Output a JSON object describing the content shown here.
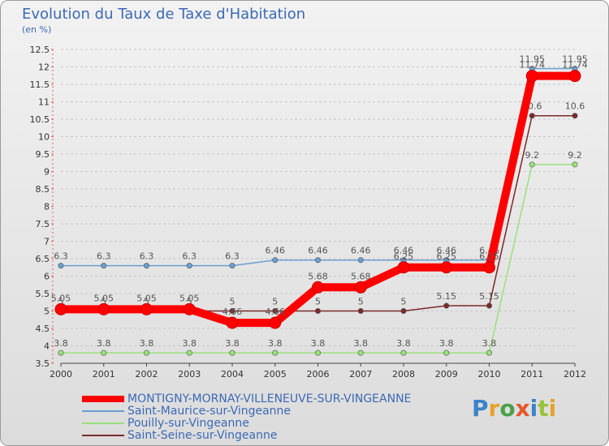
{
  "title": "Evolution du Taux de Taxe d'Habitation",
  "subtitle": "(en %)",
  "logo": {
    "letters": [
      "P",
      "r",
      "o",
      "x",
      "i",
      "t",
      "i"
    ],
    "colors": [
      "#3b83c9",
      "#e5a32b",
      "#4aa04a",
      "#e5572b",
      "#3b83c9",
      "#9ac23b",
      "#e5a32b"
    ]
  },
  "chart_data": {
    "type": "line",
    "x": [
      2000,
      2001,
      2002,
      2003,
      2004,
      2005,
      2006,
      2007,
      2008,
      2009,
      2010,
      2011,
      2012
    ],
    "ylim": [
      3.5,
      12.5
    ],
    "yticks": [
      3.5,
      4,
      4.5,
      5,
      5.5,
      6,
      6.5,
      7,
      7.5,
      8,
      8.5,
      9,
      9.5,
      10,
      10.5,
      11,
      11.5,
      12,
      12.5
    ],
    "legend_position": "bottom-left",
    "series": [
      {
        "name": "MONTIGNY-MORNAY-VILLENEUVE-SUR-VINGEANNE",
        "color": "#ff0000",
        "values": [
          5.05,
          5.05,
          5.05,
          5.05,
          4.66,
          4.66,
          5.68,
          5.68,
          6.25,
          6.25,
          6.25,
          11.74,
          11.74
        ],
        "labels": [
          "5.05",
          "5.05",
          "5.05",
          "5.05",
          "4.66",
          "4.66",
          "5.68",
          "5.68",
          "6.25",
          "6.25",
          "6.25",
          "11.74",
          "11.74"
        ]
      },
      {
        "name": "Saint-Maurice-sur-Vingeanne",
        "color": "#6a9fd0",
        "values": [
          6.3,
          6.3,
          6.3,
          6.3,
          6.3,
          6.46,
          6.46,
          6.46,
          6.46,
          6.46,
          6.46,
          11.95,
          11.95
        ],
        "labels": [
          "6.3",
          "6.3",
          "6.3",
          "6.3",
          "6.3",
          "6.46",
          "6.46",
          "6.46",
          "6.46",
          "6.46",
          "6.46",
          "11.95",
          "11.95"
        ]
      },
      {
        "name": "Pouilly-sur-Vingeanne",
        "color": "#9be07a",
        "values": [
          3.8,
          3.8,
          3.8,
          3.8,
          3.8,
          3.8,
          3.8,
          3.8,
          3.8,
          3.8,
          3.8,
          9.2,
          9.2
        ],
        "labels": [
          "3.8",
          "3.8",
          "3.8",
          "3.8",
          "3.8",
          "3.8",
          "3.8",
          "3.8",
          "3.8",
          "3.8",
          "3.8",
          "9.2",
          "9.2"
        ]
      },
      {
        "name": "Saint-Seine-sur-Vingeanne",
        "color": "#7a2a2a",
        "values": [
          5,
          5,
          5,
          5,
          5,
          5,
          5,
          5,
          5,
          5.15,
          5.15,
          10.6,
          10.6
        ],
        "labels": [
          "5",
          "5",
          "5",
          "5",
          "5",
          "5",
          "5",
          "5",
          "5",
          "5.15",
          "5.15",
          "10.6",
          "10.6"
        ]
      }
    ]
  }
}
